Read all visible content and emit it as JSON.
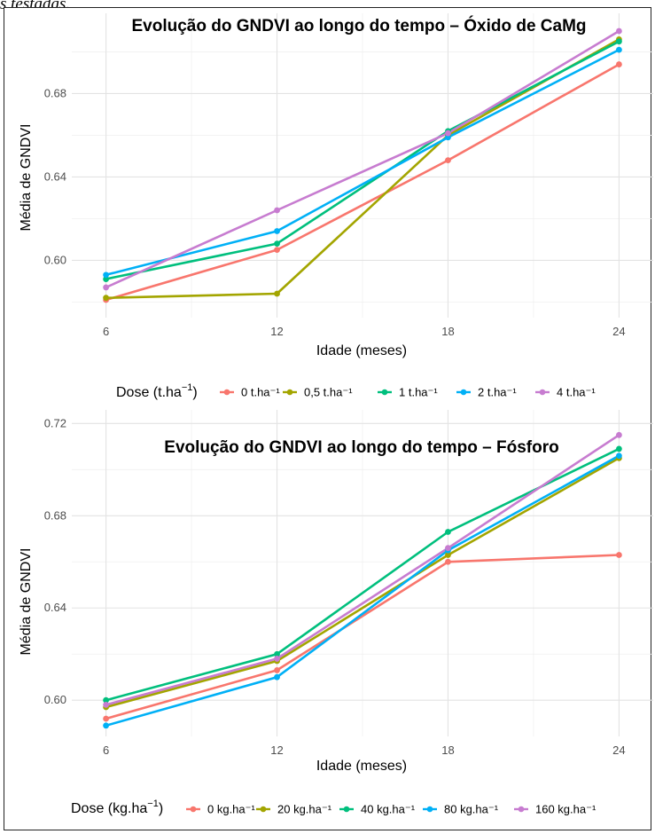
{
  "caption_fragment": "s testadas.",
  "chart_data": [
    {
      "type": "line",
      "title": "Evolução do GNDVI ao longo do tempo – Óxido de CaMg",
      "xlabel": "Idade (meses)",
      "ylabel": "Média de GNDVI",
      "x": [
        6,
        12,
        18,
        24
      ],
      "xlim": [
        4.8,
        25.2
      ],
      "ylim": [
        0.5725,
        0.7185
      ],
      "yticks": [
        0.6,
        0.64,
        0.68
      ],
      "ytick_labels": [
        "0.60",
        "0.64",
        "0.68"
      ],
      "legend": {
        "title": "Dose (t.ha",
        "title_sup": "−1",
        "title_end": ")",
        "position": "bottom"
      },
      "series": [
        {
          "name": "0 t.ha⁻¹",
          "color": "#F8766D",
          "values": [
            0.581,
            0.605,
            0.648,
            0.694
          ]
        },
        {
          "name": "0,5 t.ha⁻¹",
          "color": "#A3A500",
          "values": [
            0.582,
            0.584,
            0.66,
            0.706
          ]
        },
        {
          "name": "1 t.ha⁻¹",
          "color": "#00BF7D",
          "values": [
            0.591,
            0.608,
            0.662,
            0.705
          ]
        },
        {
          "name": "2 t.ha⁻¹",
          "color": "#00B0F6",
          "values": [
            0.593,
            0.614,
            0.659,
            0.701
          ]
        },
        {
          "name": "4 t.ha⁻¹",
          "color": "#C77CD0",
          "values": [
            0.587,
            0.624,
            0.661,
            0.71
          ]
        }
      ]
    },
    {
      "type": "line",
      "title": "Evolução do GNDVI ao longo do tempo – Fósforo",
      "xlabel": "Idade (meses)",
      "ylabel": "Média de GNDVI",
      "x": [
        6,
        12,
        18,
        24
      ],
      "xlim": [
        4.8,
        25.2
      ],
      "ylim": [
        0.5843,
        0.7259
      ],
      "yticks": [
        0.6,
        0.64,
        0.68,
        0.72
      ],
      "ytick_labels": [
        "0.60",
        "0.64",
        "0.68",
        "0.72"
      ],
      "legend": {
        "title": "Dose (kg.ha",
        "title_sup": "−1",
        "title_end": ")",
        "position": "bottom"
      },
      "series": [
        {
          "name": "0 kg.ha⁻¹",
          "color": "#F8766D",
          "values": [
            0.592,
            0.613,
            0.66,
            0.663
          ]
        },
        {
          "name": "20 kg.ha⁻¹",
          "color": "#A3A500",
          "values": [
            0.597,
            0.617,
            0.663,
            0.705
          ]
        },
        {
          "name": "40 kg.ha⁻¹",
          "color": "#00BF7D",
          "values": [
            0.6,
            0.62,
            0.673,
            0.709
          ]
        },
        {
          "name": "80 kg.ha⁻¹",
          "color": "#00B0F6",
          "values": [
            0.589,
            0.61,
            0.665,
            0.706
          ]
        },
        {
          "name": "160 kg.ha⁻¹",
          "color": "#C77CD0",
          "values": [
            0.598,
            0.618,
            0.666,
            0.715
          ]
        }
      ]
    }
  ]
}
